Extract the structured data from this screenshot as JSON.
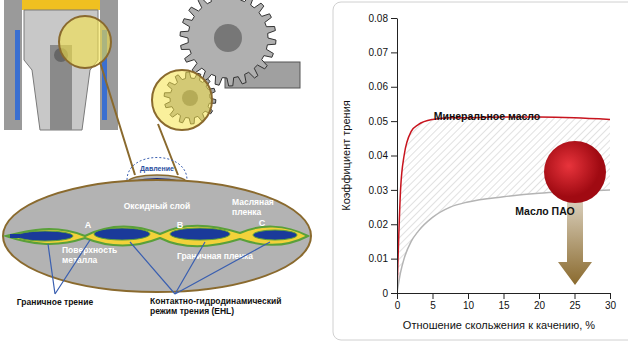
{
  "chart_data": {
    "type": "line",
    "x_label": "Отношение скольжения к качению, %",
    "y_label": "Коэффициент трения",
    "x": [
      0,
      0.5,
      1,
      2,
      3,
      5,
      7.5,
      10,
      15,
      20,
      25,
      30
    ],
    "series": [
      {
        "name": "Минеральное масло",
        "color": "#c8141e",
        "values": [
          0,
          0.03,
          0.04,
          0.047,
          0.049,
          0.0505,
          0.051,
          0.051,
          0.0512,
          0.0512,
          0.051,
          0.0505
        ]
      },
      {
        "name": "Масло ПАО",
        "color": "#b4b4b4",
        "values": [
          0,
          0.006,
          0.01,
          0.015,
          0.018,
          0.022,
          0.025,
          0.0265,
          0.028,
          0.029,
          0.0295,
          0.03
        ]
      }
    ],
    "xlim": [
      0,
      30
    ],
    "xticks": [
      0,
      5,
      10,
      15,
      20,
      25,
      30
    ],
    "ylim": [
      0,
      0.08
    ],
    "yticks": [
      0,
      0.01,
      0.02,
      0.03,
      0.04,
      0.05,
      0.06,
      0.07,
      0.08
    ],
    "grid": false
  },
  "diagram": {
    "pressure": "Давление",
    "oxide_layer": "Оксидный слой",
    "oil_film": [
      "Масляная",
      "пленка"
    ],
    "points": [
      "A",
      "B",
      "C"
    ],
    "metal_surface": [
      "Поверхность",
      "металла"
    ],
    "boundary_film": "Граничная пленка",
    "boundary_friction": "Граничное трение",
    "ehl": [
      "Контактно-гидродинамический",
      "режим трения (EHL)"
    ]
  }
}
